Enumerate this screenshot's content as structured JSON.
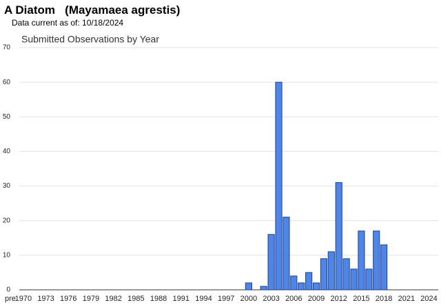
{
  "header": {
    "title": "A Diatom   (Mayamaea agrestis)",
    "subtitle": "Data current as of: 10/18/2024"
  },
  "chart_data": {
    "type": "bar",
    "title": "Submitted Observations by Year",
    "categories": [
      "pre",
      "1970",
      null,
      null,
      "1973",
      null,
      null,
      "1976",
      null,
      null,
      "1979",
      null,
      null,
      "1982",
      null,
      null,
      "1985",
      null,
      null,
      "1988",
      null,
      null,
      "1991",
      null,
      null,
      "1994",
      null,
      null,
      "1997",
      null,
      null,
      "2000",
      null,
      null,
      "2003",
      null,
      null,
      "2006",
      null,
      null,
      "2009",
      null,
      null,
      "2012",
      null,
      null,
      "2015",
      null,
      null,
      "2018",
      null,
      null,
      "2021",
      null,
      null,
      "2024"
    ],
    "values": [
      0,
      0,
      0,
      0,
      0,
      0,
      0,
      0,
      0,
      0,
      0,
      0,
      0,
      0,
      0,
      0,
      0,
      0,
      0,
      0,
      0,
      0,
      0,
      0,
      0,
      0,
      0,
      0,
      0,
      0,
      0,
      2,
      0,
      1,
      16,
      60,
      21,
      4,
      2,
      5,
      2,
      9,
      11,
      31,
      9,
      6,
      17,
      6,
      17,
      13,
      0,
      0,
      0,
      0,
      0,
      0
    ],
    "color": "#4f86e6",
    "ylim": [
      0,
      70
    ],
    "yticks": [
      0,
      10,
      20,
      30,
      40,
      50,
      60,
      70
    ],
    "grid": true
  }
}
